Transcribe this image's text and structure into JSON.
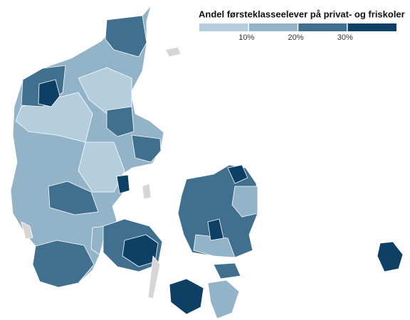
{
  "chart_data": {
    "type": "choropleth",
    "title": "Andel førsteklasseelever på privat- og friskoler",
    "legend": {
      "xlim": [
        0,
        40
      ],
      "ticks": [
        {
          "value": 10,
          "label": "10%"
        },
        {
          "value": 20,
          "label": "20%"
        },
        {
          "value": 30,
          "label": "30%"
        }
      ],
      "colors": [
        "#b5cedd",
        "#93b3c9",
        "#41708f",
        "#0e3f65"
      ]
    },
    "no_data_color": "#d6d6d6"
  }
}
